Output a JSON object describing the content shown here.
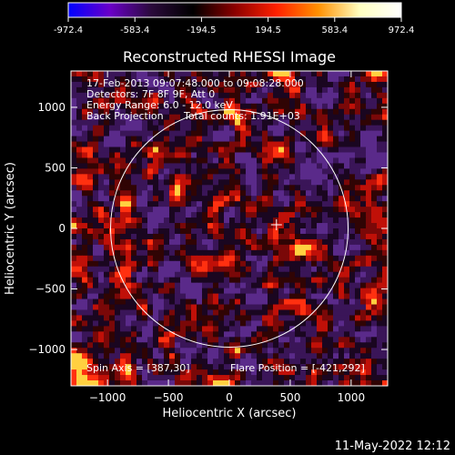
{
  "colors": {
    "background": "#000000",
    "text": "#ffffff",
    "colorbar_stops": [
      "#0000ff",
      "#6a00c8",
      "#2a0a3a",
      "#000000",
      "#8b0000",
      "#ff2000",
      "#ff9000",
      "#ffffc0",
      "#ffffff"
    ]
  },
  "colorbar": {
    "min": -972.4,
    "max": 972.4,
    "tick_labels": [
      "-972.4",
      "-583.4",
      "-194.5",
      "194.5",
      "583.4",
      "972.4"
    ]
  },
  "chart_data": {
    "type": "heatmap",
    "title": "Reconstructed RHESSI Image",
    "xlabel": "Heliocentric X (arcsec)",
    "ylabel": "Heliocentric Y (arcsec)",
    "xlim": [
      -1300,
      1300
    ],
    "ylim": [
      -1300,
      1300
    ],
    "xticks": [
      -1000,
      -500,
      0,
      500,
      1000
    ],
    "yticks": [
      -1000,
      -500,
      0,
      500,
      1000
    ],
    "xtick_labels": [
      "−1000",
      "−500",
      "0",
      "500",
      "1000"
    ],
    "ytick_labels": [
      "−1000",
      "−500",
      "0",
      "500",
      "1000"
    ],
    "solar_limb_radius": 975,
    "crosshair": [
      387,
      30
    ],
    "bright_sources": [
      {
        "x": -440,
        "y": 300,
        "level": "high"
      },
      {
        "x": 570,
        "y": -160,
        "level": "high"
      },
      {
        "x": -100,
        "y": 200,
        "level": "medium"
      }
    ],
    "annotations": {
      "time_range": "17-Feb-2013 09:07:48.000 to 09:08:28.000",
      "detectors": "Detectors: 7F 8F 9F, Att 0",
      "energy_range": "Energy Range: 6.0 - 12.0 keV",
      "method": "Back Projection",
      "total_counts": "Total counts: 1.91E+03",
      "spin_axis": "Spin Axis = [387,30]",
      "flare_position": "Flare Position = [-421,292]"
    }
  },
  "footer": {
    "timestamp": "11-May-2022 12:12"
  }
}
